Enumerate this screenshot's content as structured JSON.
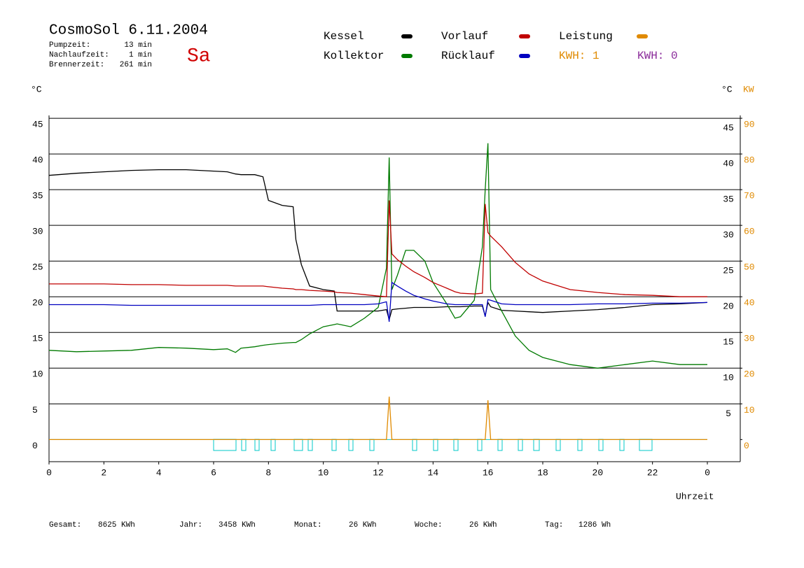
{
  "chart_data": {
    "type": "line",
    "title": "CosmoSol 6.11.2004",
    "day": "Sa",
    "info": [
      {
        "label": "Pumpzeit:",
        "value": "13 min"
      },
      {
        "label": "Nachlaufzeit:",
        "value": "1 min"
      },
      {
        "label": "Brennerzeit:",
        "value": "261 min"
      }
    ],
    "kwh_labels": [
      {
        "text": "KWH: 1",
        "color": "#e08a00"
      },
      {
        "text": "KWH: 0",
        "color": "#8a2b9a"
      }
    ],
    "y_label": "°C",
    "y2_label_c": "°C",
    "y2_label": "KW",
    "x_label": "Uhrzeit",
    "x": [
      0,
      1,
      2,
      3,
      4,
      5,
      6,
      6.5,
      6.8,
      7,
      7.5,
      7.8,
      8,
      8.5,
      8.9,
      9,
      9.2,
      9.5,
      10,
      10.4,
      10.5,
      11,
      11.5,
      12,
      12.3,
      12.4,
      12.5,
      12.7,
      13,
      13.3,
      13.7,
      14,
      14.5,
      14.8,
      15,
      15.5,
      15.8,
      15.9,
      16,
      16.1,
      16.5,
      17,
      17.5,
      18,
      19,
      20,
      21,
      22,
      23,
      24
    ],
    "series": [
      {
        "name": "Kessel",
        "color": "#000000",
        "values": [
          37,
          37.3,
          37.5,
          37.7,
          37.8,
          37.8,
          37.6,
          37.5,
          37.2,
          37.1,
          37.1,
          36.8,
          33.5,
          32.8,
          32.6,
          28,
          24.5,
          21.5,
          21,
          20.8,
          18,
          18,
          18,
          18,
          18.2,
          16.8,
          18.2,
          18.3,
          18.4,
          18.5,
          18.5,
          18.5,
          18.6,
          18.6,
          18.6,
          18.7,
          18.7,
          17.3,
          19.2,
          18.6,
          18.1,
          18,
          17.9,
          17.8,
          18,
          18.2,
          18.5,
          18.9,
          19,
          19.2
        ]
      },
      {
        "name": "Kollektor",
        "color": "#007a00",
        "values": [
          12.5,
          12.3,
          12.4,
          12.5,
          12.9,
          12.8,
          12.6,
          12.7,
          12.2,
          12.8,
          13,
          13.2,
          13.3,
          13.5,
          13.6,
          13.6,
          14,
          14.8,
          15.8,
          16.1,
          16.2,
          15.8,
          17,
          18.5,
          24,
          39.5,
          21,
          23,
          26.5,
          26.5,
          25,
          22,
          19,
          17,
          17.2,
          19.5,
          27,
          35,
          41.5,
          21,
          18,
          14.5,
          12.5,
          11.5,
          10.5,
          10,
          10.5,
          11,
          10.5,
          10.5
        ]
      },
      {
        "name": "Vorlauf",
        "color": "#c00000",
        "values": [
          21.8,
          21.8,
          21.8,
          21.7,
          21.7,
          21.6,
          21.6,
          21.6,
          21.5,
          21.5,
          21.5,
          21.5,
          21.4,
          21.2,
          21.1,
          21,
          21,
          20.9,
          20.8,
          20.7,
          20.6,
          20.5,
          20.3,
          20.1,
          20,
          33.5,
          26,
          25.2,
          24.3,
          23.5,
          22.7,
          22,
          21.2,
          20.7,
          20.5,
          20.4,
          20.5,
          33,
          29,
          28.5,
          27,
          24.8,
          23.2,
          22.2,
          21,
          20.6,
          20.3,
          20.2,
          20,
          20
        ]
      },
      {
        "name": "Rücklauf",
        "color": "#0000c0",
        "values": [
          18.9,
          18.9,
          18.9,
          18.8,
          18.8,
          18.8,
          18.8,
          18.8,
          18.8,
          18.8,
          18.8,
          18.8,
          18.8,
          18.8,
          18.8,
          18.8,
          18.8,
          18.8,
          18.9,
          18.9,
          18.9,
          18.9,
          18.9,
          19,
          19.3,
          16.5,
          22,
          21.5,
          20.8,
          20.2,
          19.7,
          19.4,
          19,
          18.9,
          18.9,
          18.9,
          18.9,
          17.2,
          19.6,
          19.5,
          19,
          18.9,
          18.9,
          18.9,
          18.9,
          19,
          19,
          19.1,
          19.1,
          19.2
        ]
      },
      {
        "name": "Leistung",
        "color": "#e08a00",
        "axis": "y2",
        "values": [
          0,
          0,
          0,
          0,
          0,
          0,
          0,
          0,
          0,
          0,
          0,
          0,
          0,
          0,
          0,
          0,
          0,
          0,
          0,
          0,
          0,
          0,
          0,
          0,
          0,
          12,
          0,
          0,
          0,
          0,
          0,
          0,
          0,
          0,
          0,
          0,
          0,
          0,
          11,
          0,
          0,
          0,
          0,
          0,
          0,
          0,
          0,
          0,
          0,
          0
        ]
      }
    ],
    "xlim": [
      0,
      25.2
    ],
    "xticks": [
      0,
      2,
      4,
      6,
      8,
      10,
      12,
      14,
      16,
      18,
      20,
      22,
      {
        "value": 24,
        "label": "0"
      }
    ],
    "ylim": [
      -3.1,
      45.4
    ],
    "yticks": [
      0,
      5,
      10,
      15,
      20,
      25,
      30,
      35,
      40,
      45
    ],
    "y2lim": [
      -6.2,
      90.8
    ],
    "y2ticks": [
      0,
      10,
      20,
      30,
      40,
      50,
      60,
      70,
      80,
      90
    ],
    "grid": true,
    "footer": [
      {
        "label": "Gesamt:",
        "value": "8625 KWh"
      },
      {
        "label": "Jahr:",
        "value": "3458 KWh"
      },
      {
        "label": "Monat:",
        "value": "26 KWh"
      },
      {
        "label": "Woche:",
        "value": "26 KWh"
      },
      {
        "label": "Tag:",
        "value": "1286 Wh"
      }
    ]
  }
}
